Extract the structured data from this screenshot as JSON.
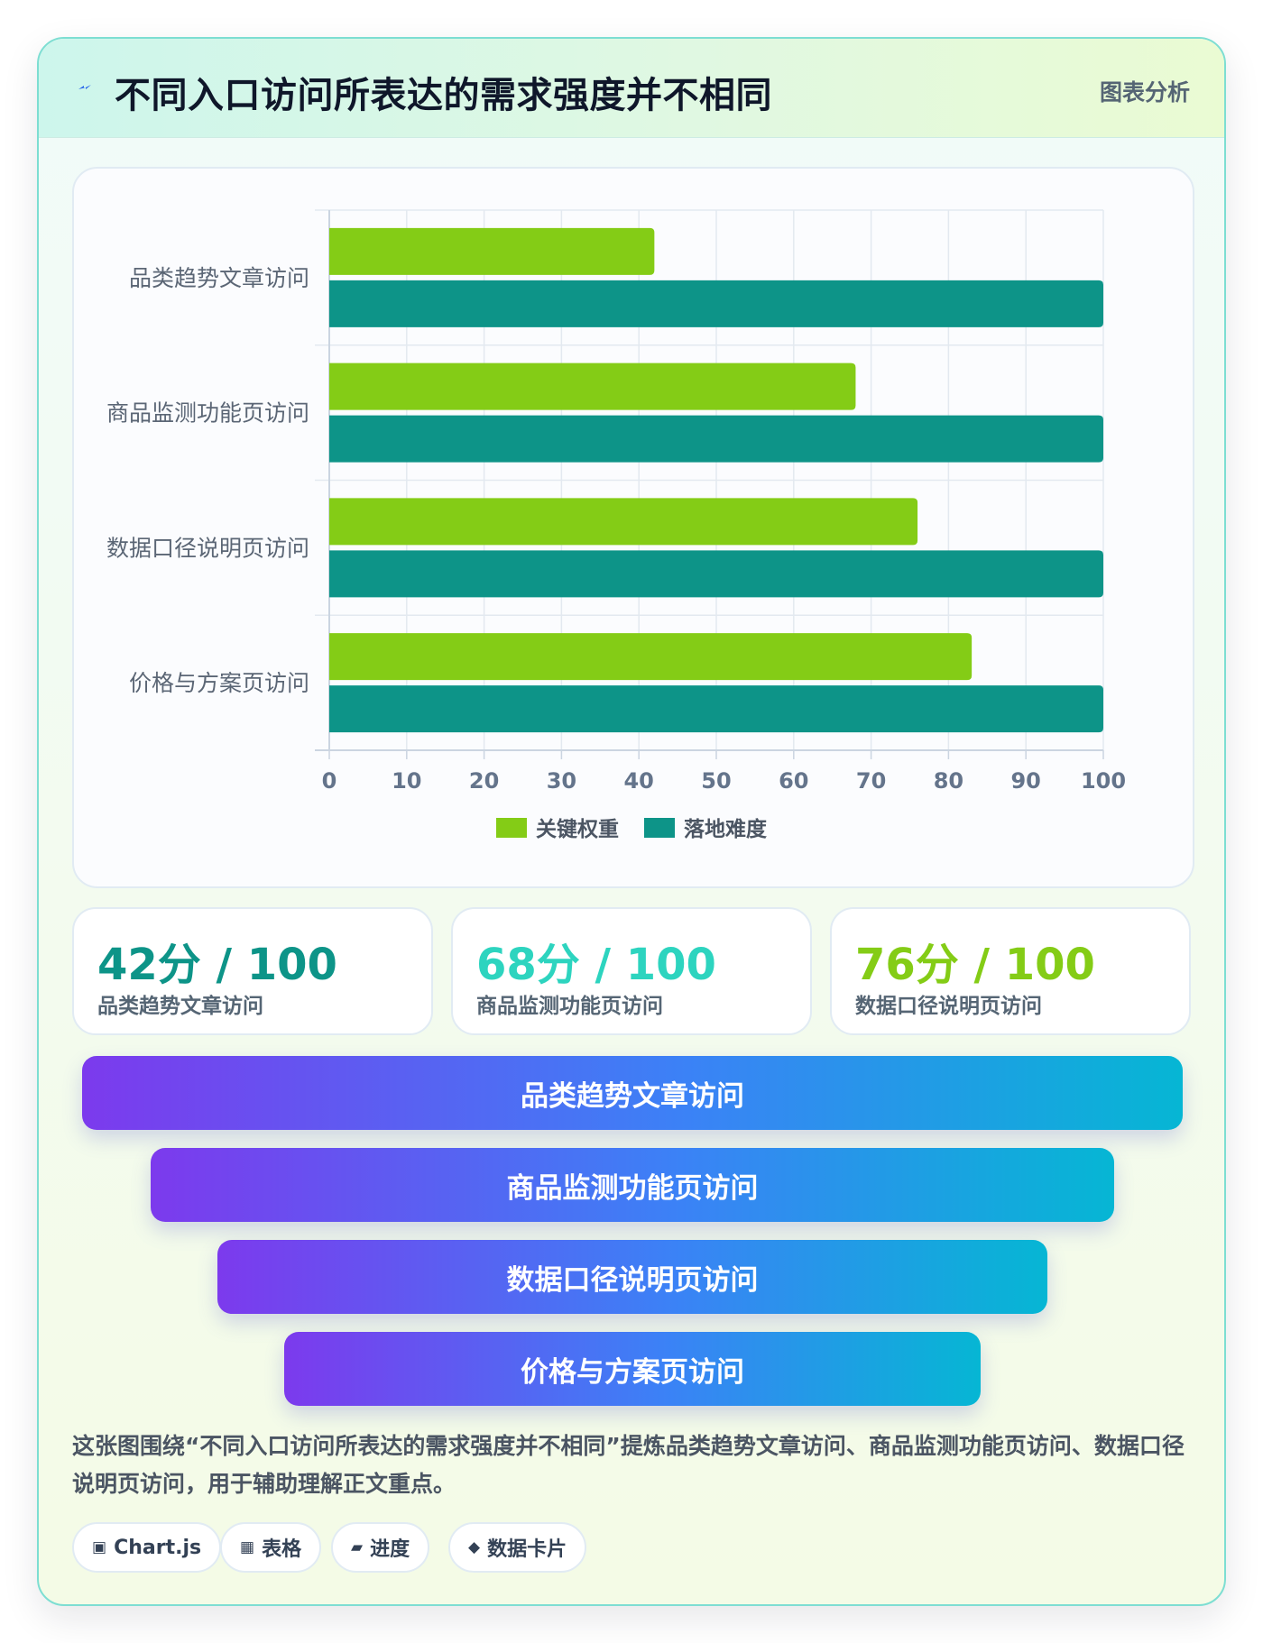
{
  "header": {
    "title": "不同入口访问所表达的需求强度并不相同",
    "tag": "图表分析",
    "icon": "lightning-icon"
  },
  "chart_data": {
    "type": "bar",
    "orientation": "horizontal",
    "categories": [
      "品类趋势文章访问",
      "商品监测功能页访问",
      "数据口径说明页访问",
      "价格与方案页访问"
    ],
    "series": [
      {
        "name": "关键权重",
        "values": [
          42,
          68,
          76,
          83
        ],
        "color": "#84cc16"
      },
      {
        "name": "落地难度",
        "values": [
          100,
          100,
          100,
          100
        ],
        "color": "#0d9488"
      }
    ],
    "xlim": [
      0,
      100
    ],
    "xticks": [
      0,
      10,
      20,
      30,
      40,
      50,
      60,
      70,
      80,
      90,
      100
    ],
    "grid": true,
    "legend_position": "bottom"
  },
  "stats": [
    {
      "value": "42分 / 100",
      "label": "品类趋势文章访问",
      "color": "#0d9488"
    },
    {
      "value": "68分 / 100",
      "label": "商品监测功能页访问",
      "color": "#2dd4bf"
    },
    {
      "value": "76分 / 100",
      "label": "数据口径说明页访问",
      "color": "#84cc16"
    }
  ],
  "funnel": [
    "品类趋势文章访问",
    "商品监测功能页访问",
    "数据口径说明页访问",
    "价格与方案页访问"
  ],
  "description": "这张图围绕“不同入口访问所表达的需求强度并不相同”提炼品类趋势文章访问、商品监测功能页访问、数据口径说明页访问，用于辅助理解正文重点。",
  "pills": [
    {
      "icon": "▣",
      "label": "Chart.js"
    },
    {
      "icon": "▦",
      "label": "表格"
    },
    {
      "icon": "▰",
      "label": "进度"
    },
    {
      "icon": "◆",
      "label": "数据卡片"
    }
  ],
  "colors": {
    "accent_teal": "#0d9488",
    "accent_lime": "#84cc16",
    "funnel_gradient": [
      "#7c3aed",
      "#3b82f6",
      "#06b6d4"
    ]
  }
}
